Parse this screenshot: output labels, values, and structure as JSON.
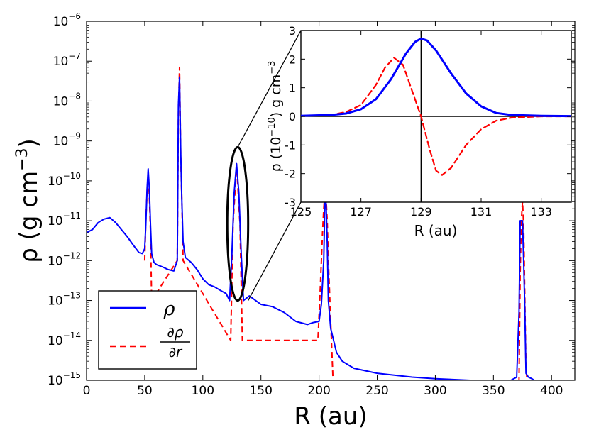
{
  "chart_data": [
    {
      "type": "line",
      "role": "main",
      "xlabel": "R (au)",
      "ylabel_prefix": "ρ (g cm",
      "ylabel_sup": "−3",
      "ylabel_suffix": ")",
      "yscale": "log",
      "xlim": [
        0,
        420
      ],
      "ylim_exp": [
        -15,
        -6
      ],
      "x_ticks": [
        "0",
        "50",
        "100",
        "150",
        "200",
        "250",
        "300",
        "350",
        "400"
      ],
      "x_tick_values": [
        0,
        50,
        100,
        150,
        200,
        250,
        300,
        350,
        400
      ],
      "y_tick_exponents": [
        "−15",
        "−14",
        "−13",
        "−12",
        "−11",
        "−10",
        "−9",
        "−8",
        "−7",
        "−6"
      ],
      "y_tick_base": "10",
      "legend": {
        "location": "lower-left",
        "entries": [
          {
            "label": "ρ",
            "color": "#0000ff",
            "style": "solid"
          },
          {
            "label_num": "∂ρ",
            "label_den": "∂r",
            "color": "#ff0000",
            "style": "dashed"
          }
        ]
      },
      "series": [
        {
          "name": "ρ",
          "color": "#0000ff",
          "style": "solid",
          "x": [
            0,
            5,
            10,
            15,
            20,
            25,
            30,
            35,
            40,
            45,
            48,
            50,
            51,
            52,
            53,
            54,
            55,
            56,
            58,
            60,
            65,
            70,
            75,
            78,
            79,
            80,
            81,
            82,
            83,
            85,
            90,
            95,
            100,
            105,
            110,
            115,
            120,
            123,
            125,
            127,
            129,
            131,
            133,
            135,
            140,
            150,
            160,
            170,
            180,
            190,
            195,
            200,
            202,
            204,
            205,
            206,
            207,
            208,
            210,
            215,
            220,
            230,
            250,
            280,
            300,
            330,
            350,
            365,
            370,
            372,
            373,
            374,
            375,
            376,
            377,
            378,
            380,
            383,
            385
          ],
          "y": [
            5e-12,
            6e-12,
            9e-12,
            1.1e-11,
            1.2e-11,
            9e-12,
            6e-12,
            4e-12,
            2.5e-12,
            1.6e-12,
            1.5e-12,
            2e-12,
            8e-12,
            6e-11,
            2e-10,
            6e-11,
            8e-12,
            1.5e-12,
            9e-13,
            8e-13,
            7e-13,
            6e-13,
            5.5e-13,
            1e-12,
            8e-09,
            4e-08,
            5e-10,
            3e-11,
            3e-12,
            1.2e-12,
            9e-13,
            6e-13,
            3.5e-13,
            2.5e-13,
            2.2e-13,
            1.8e-13,
            1.5e-13,
            1e-13,
            1.5e-12,
            5e-11,
            2.7e-10,
            5e-11,
            1.5e-12,
            1e-13,
            1.3e-13,
            8e-14,
            7e-14,
            5e-14,
            3e-14,
            2.5e-14,
            2.8e-14,
            3e-14,
            8e-14,
            1e-12,
            3e-11,
            3e-11,
            3e-12,
            1e-13,
            2e-14,
            5e-15,
            3e-15,
            2e-15,
            1.5e-15,
            1.2e-15,
            1.1e-15,
            1e-15,
            1e-15,
            1e-15,
            1.2e-15,
            5e-14,
            1e-11,
            1e-11,
            1e-11,
            1e-12,
            5e-14,
            1.5e-15,
            1.2e-15,
            1.1e-15,
            1e-15
          ]
        },
        {
          "name": "∂ρ/∂r",
          "color": "#ff0000",
          "style": "dashed",
          "x": [
            50,
            51,
            52,
            53,
            54,
            55,
            56,
            78,
            79,
            80,
            81,
            82,
            83,
            124,
            126,
            128,
            129,
            130,
            132,
            134,
            199,
            201,
            203,
            204,
            205,
            206,
            207,
            208,
            210,
            212,
            372,
            373,
            374,
            375,
            376,
            377,
            378,
            379
          ],
          "y": [
            1e-12,
            1e-11,
            5e-11,
            1.5e-10,
            4e-11,
            5e-12,
            1e-13,
            1e-12,
            5e-09,
            7e-08,
            4e-10,
            3e-11,
            1e-12,
            1e-14,
            8e-12,
            8e-11,
            2.6e-10,
            8e-11,
            8e-12,
            1e-14,
            1e-14,
            2e-13,
            5e-12,
            2e-11,
            5e-11,
            4e-11,
            1e-11,
            1e-12,
            3e-14,
            1e-15,
            1e-15,
            5e-13,
            1e-11,
            3e-11,
            8e-12,
            1e-13,
            2e-15,
            1e-15
          ]
        }
      ]
    },
    {
      "type": "line",
      "role": "inset",
      "xlabel": "R (au)",
      "ylabel_prefix": "ρ (10",
      "ylabel_sup": "−10",
      "ylabel_suffix": ") g cm",
      "ylabel_sup2": "−3",
      "xlim": [
        125,
        134
      ],
      "ylim": [
        -3,
        3
      ],
      "x_ticks": [
        "125",
        "127",
        "129",
        "131",
        "133"
      ],
      "x_tick_values": [
        125,
        127,
        129,
        131,
        133
      ],
      "y_ticks": [
        "-3",
        "-2",
        "-1",
        "0",
        "1",
        "2",
        "3"
      ],
      "y_tick_values": [
        -3,
        -2,
        -1,
        0,
        1,
        2,
        3
      ],
      "reference_lines": {
        "x": 129,
        "y": 0
      },
      "series": [
        {
          "name": "ρ",
          "color": "#0000ff",
          "style": "solid",
          "x": [
            125,
            126,
            126.5,
            127,
            127.5,
            128,
            128.5,
            128.8,
            129,
            129.2,
            129.5,
            130,
            130.5,
            131,
            131.5,
            132,
            133,
            134
          ],
          "y": [
            0.02,
            0.05,
            0.1,
            0.25,
            0.6,
            1.3,
            2.2,
            2.6,
            2.72,
            2.65,
            2.3,
            1.5,
            0.8,
            0.35,
            0.12,
            0.05,
            0.02,
            0.01
          ]
        },
        {
          "name": "∂ρ/∂r",
          "color": "#ff0000",
          "style": "dashed",
          "x": [
            125,
            126,
            126.5,
            127,
            127.5,
            127.8,
            128.1,
            128.4,
            128.7,
            129,
            129.3,
            129.5,
            129.7,
            130,
            130.5,
            131,
            131.5,
            132,
            133,
            134
          ],
          "y": [
            0.02,
            0.05,
            0.15,
            0.4,
            1.1,
            1.7,
            2.05,
            1.8,
            0.9,
            0.0,
            -1.2,
            -1.9,
            -2.05,
            -1.8,
            -1.0,
            -0.45,
            -0.15,
            -0.05,
            0.0,
            0.0
          ]
        }
      ]
    }
  ],
  "zoom_marker": {
    "x_center": 130,
    "x_half_width": 9,
    "y_bottom": 1e-13,
    "y_top": 7e-10
  }
}
